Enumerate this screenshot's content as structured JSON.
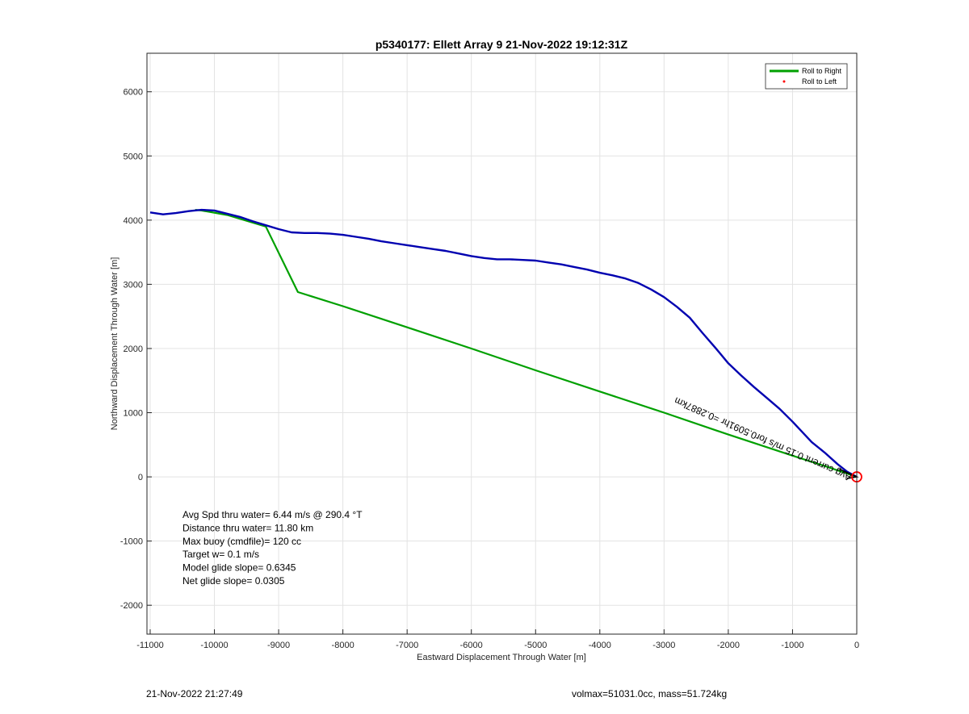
{
  "chart_data": {
    "type": "line",
    "title": "p5340177: Ellett Array 9 21-Nov-2022 19:12:31Z",
    "xlabel": "Eastward Displacement Through Water [m]",
    "ylabel": "Northward Displacement Through Water [m]",
    "xlim": [
      -11050,
      0
    ],
    "ylim": [
      -2450,
      6600
    ],
    "xticks": [
      -11000,
      -10000,
      -9000,
      -8000,
      -7000,
      -6000,
      -5000,
      -4000,
      -3000,
      -2000,
      -1000,
      0
    ],
    "yticks": [
      -2000,
      -1000,
      0,
      1000,
      2000,
      3000,
      4000,
      5000,
      6000
    ],
    "grid": true,
    "legend_position": "top-right",
    "series": [
      {
        "name": "Roll to Right",
        "color": "#00a000",
        "x": [
          0,
          -500,
          -1000,
          -2000,
          -3000,
          -4000,
          -5000,
          -6000,
          -7000,
          -8000,
          -8700,
          -9200,
          -9800,
          -10200,
          -10300
        ],
        "y": [
          0,
          170,
          330,
          660,
          1000,
          1330,
          1660,
          2000,
          2330,
          2660,
          2880,
          3900,
          4080,
          4150,
          4160
        ]
      },
      {
        "name": "Roll to Left",
        "color": "#ff0000",
        "x": [],
        "y": []
      },
      {
        "name": "",
        "color": "#0000b0",
        "x": [
          0,
          -150,
          -300,
          -500,
          -700,
          -1000,
          -1200,
          -1400,
          -1600,
          -1800,
          -2000,
          -2200,
          -2400,
          -2600,
          -2800,
          -3000,
          -3200,
          -3400,
          -3600,
          -3800,
          -4000,
          -4200,
          -4400,
          -4600,
          -4800,
          -5000,
          -5200,
          -5400,
          -5600,
          -5800,
          -6000,
          -6200,
          -6400,
          -6600,
          -6800,
          -7000,
          -7200,
          -7400,
          -7600,
          -7800,
          -8000,
          -8200,
          -8400,
          -8600,
          -8800,
          -9000,
          -9200,
          -9400,
          -9600,
          -9800,
          -10000,
          -10200,
          -10400,
          -10600,
          -10800,
          -11000
        ],
        "y": [
          0,
          80,
          200,
          380,
          540,
          860,
          1060,
          1230,
          1400,
          1580,
          1770,
          2010,
          2240,
          2480,
          2650,
          2800,
          2920,
          3020,
          3090,
          3140,
          3180,
          3230,
          3270,
          3310,
          3340,
          3370,
          3380,
          3390,
          3390,
          3410,
          3440,
          3480,
          3520,
          3550,
          3580,
          3610,
          3640,
          3670,
          3710,
          3740,
          3770,
          3790,
          3800,
          3800,
          3810,
          3860,
          3920,
          3980,
          4050,
          4100,
          4150,
          4160,
          4140,
          4110,
          4090,
          4120
        ]
      }
    ],
    "arrow_annotation": {
      "text": "‎‮5.2 hrs for 0.5091 hr =0.2887km‬",
      "text_plain": "Avg current 0.15 m/s for0.5091hr =0.2887km",
      "color": "#000000"
    },
    "end_marker": {
      "x": 0,
      "y": 0,
      "color": "#ff0000"
    },
    "annotations": [
      "Avg Spd thru water=  6.44 m/s @ 290.4 °T",
      "Distance thru water= 11.80 km",
      "Max buoy (cmdfile)= 120 cc",
      "Target w= 0.1 m/s",
      "Model glide slope= 0.6345",
      "Net glide slope= 0.0305"
    ]
  },
  "footer": {
    "left": "21-Nov-2022 21:27:49",
    "right": "volmax=51031.0cc, mass=51.724kg"
  }
}
